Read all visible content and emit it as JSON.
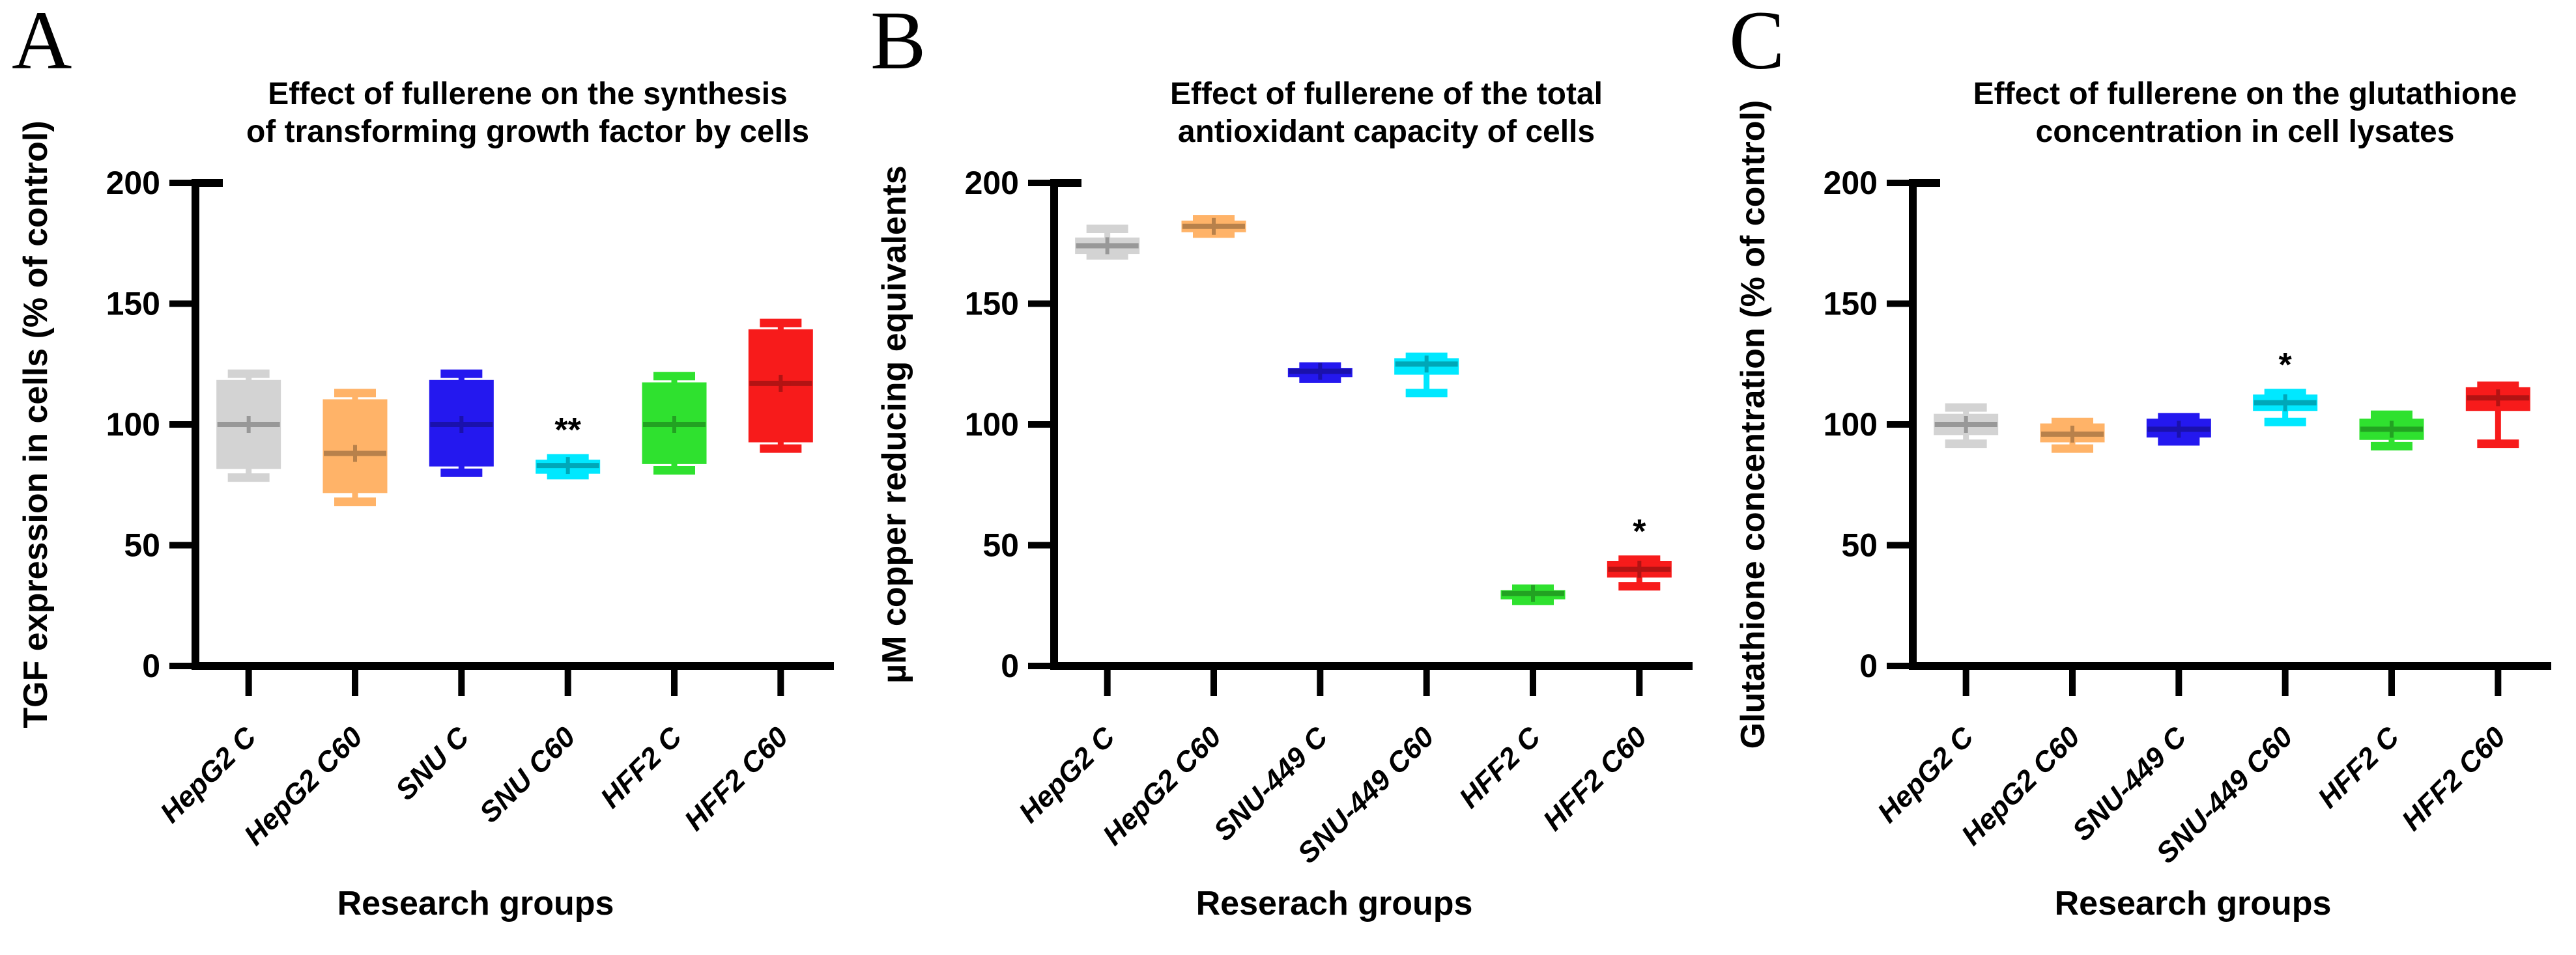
{
  "figure_type": "three-panel box plot figure",
  "chart_data": [
    {
      "panel_letter": "A",
      "type": "box",
      "title_lines": [
        "Effect of fullerene on the synthesis",
        "of transforming growth factor by cells"
      ],
      "y_label": "TGF expression in cells (% of control)",
      "x_label": "Research groups",
      "ylim": [
        0,
        200
      ],
      "y_ticks": [
        0,
        50,
        100,
        150,
        200
      ],
      "categories": [
        "HepG2 C",
        "HepG2 C60",
        "SNU C",
        "SNU C60",
        "HFF2 C",
        "HFF2 C60"
      ],
      "series": [
        {
          "label": "HepG2 C",
          "color": "#d3d3d3",
          "whisker_low": 78,
          "q1": 82,
          "median": 100,
          "q3": 118,
          "whisker_high": 121,
          "sig": ""
        },
        {
          "label": "HepG2 C60",
          "color": "#ffb368",
          "whisker_low": 68,
          "q1": 72,
          "median": 88,
          "q3": 110,
          "whisker_high": 113,
          "sig": ""
        },
        {
          "label": "SNU C",
          "color": "#2418ef",
          "whisker_low": 80,
          "q1": 83,
          "median": 100,
          "q3": 118,
          "whisker_high": 121,
          "sig": ""
        },
        {
          "label": "SNU C60",
          "color": "#00e8ff",
          "whisker_low": 79,
          "q1": 80,
          "median": 83,
          "q3": 85,
          "whisker_high": 86,
          "sig": "**"
        },
        {
          "label": "HFF2 C",
          "color": "#2fe12f",
          "whisker_low": 81,
          "q1": 84,
          "median": 100,
          "q3": 117,
          "whisker_high": 120,
          "sig": ""
        },
        {
          "label": "HFF2 C60",
          "color": "#f71b1b",
          "whisker_low": 90,
          "q1": 93,
          "median": 117,
          "q3": 139,
          "whisker_high": 142,
          "sig": ""
        }
      ]
    },
    {
      "panel_letter": "B",
      "type": "box",
      "title_lines": [
        "Effect of fullerene of the total",
        "antioxidant capacity of cells"
      ],
      "y_label": "µM copper reducing equivalents",
      "x_label": "Reserach groups",
      "ylim": [
        0,
        200
      ],
      "y_ticks": [
        0,
        50,
        100,
        150,
        200
      ],
      "categories": [
        "HepG2 C",
        "HepG2 C60",
        "SNU-449 C",
        "SNU-449 C60",
        "HFF2 C",
        "HFF2 C60"
      ],
      "series": [
        {
          "label": "HepG2 C",
          "color": "#d3d3d3",
          "whisker_low": 170,
          "q1": 171,
          "median": 174,
          "q3": 177,
          "whisker_high": 181,
          "sig": ""
        },
        {
          "label": "HepG2 C60",
          "color": "#ffb368",
          "whisker_low": 179,
          "q1": 180,
          "median": 182,
          "q3": 184,
          "whisker_high": 185,
          "sig": ""
        },
        {
          "label": "SNU-449 C",
          "color": "#2418ef",
          "whisker_low": 119,
          "q1": 120,
          "median": 122,
          "q3": 123,
          "whisker_high": 124,
          "sig": ""
        },
        {
          "label": "SNU-449 C60",
          "color": "#00e8ff",
          "whisker_low": 113,
          "q1": 121,
          "median": 125,
          "q3": 127,
          "whisker_high": 128,
          "sig": ""
        },
        {
          "label": "HFF2 C",
          "color": "#2fe12f",
          "whisker_low": 27,
          "q1": 28,
          "median": 30,
          "q3": 31,
          "whisker_high": 32,
          "sig": ""
        },
        {
          "label": "HFF2 C60",
          "color": "#f71b1b",
          "whisker_low": 33,
          "q1": 37,
          "median": 40,
          "q3": 43,
          "whisker_high": 44,
          "sig": "*"
        }
      ]
    },
    {
      "panel_letter": "C",
      "type": "box",
      "title_lines": [
        "Effect of fullerene on the glutathione",
        "concentration in cell lysates"
      ],
      "y_label": "Glutathione concentration (% of control)",
      "x_label": "Research groups",
      "ylim": [
        0,
        200
      ],
      "y_ticks": [
        0,
        50,
        100,
        150,
        200
      ],
      "categories": [
        "HepG2 C",
        "HepG2 C60",
        "SNU-449 C",
        "SNU-449 C60",
        "HFF2 C",
        "HFF2 C60"
      ],
      "series": [
        {
          "label": "HepG2 C",
          "color": "#d3d3d3",
          "whisker_low": 92,
          "q1": 96,
          "median": 100,
          "q3": 104,
          "whisker_high": 107,
          "sig": ""
        },
        {
          "label": "HepG2 C60",
          "color": "#ffb368",
          "whisker_low": 90,
          "q1": 93,
          "median": 96,
          "q3": 100,
          "whisker_high": 101,
          "sig": ""
        },
        {
          "label": "SNU-449 C",
          "color": "#2418ef",
          "whisker_low": 93,
          "q1": 95,
          "median": 98,
          "q3": 102,
          "whisker_high": 103,
          "sig": ""
        },
        {
          "label": "SNU-449 C60",
          "color": "#00e8ff",
          "whisker_low": 101,
          "q1": 106,
          "median": 109,
          "q3": 112,
          "whisker_high": 113,
          "sig": "*"
        },
        {
          "label": "HFF2 C",
          "color": "#2fe12f",
          "whisker_low": 91,
          "q1": 94,
          "median": 98,
          "q3": 102,
          "whisker_high": 104,
          "sig": ""
        },
        {
          "label": "HFF2 C60",
          "color": "#f71b1b",
          "whisker_low": 92,
          "q1": 106,
          "median": 111,
          "q3": 115,
          "whisker_high": 116,
          "sig": ""
        }
      ]
    }
  ]
}
